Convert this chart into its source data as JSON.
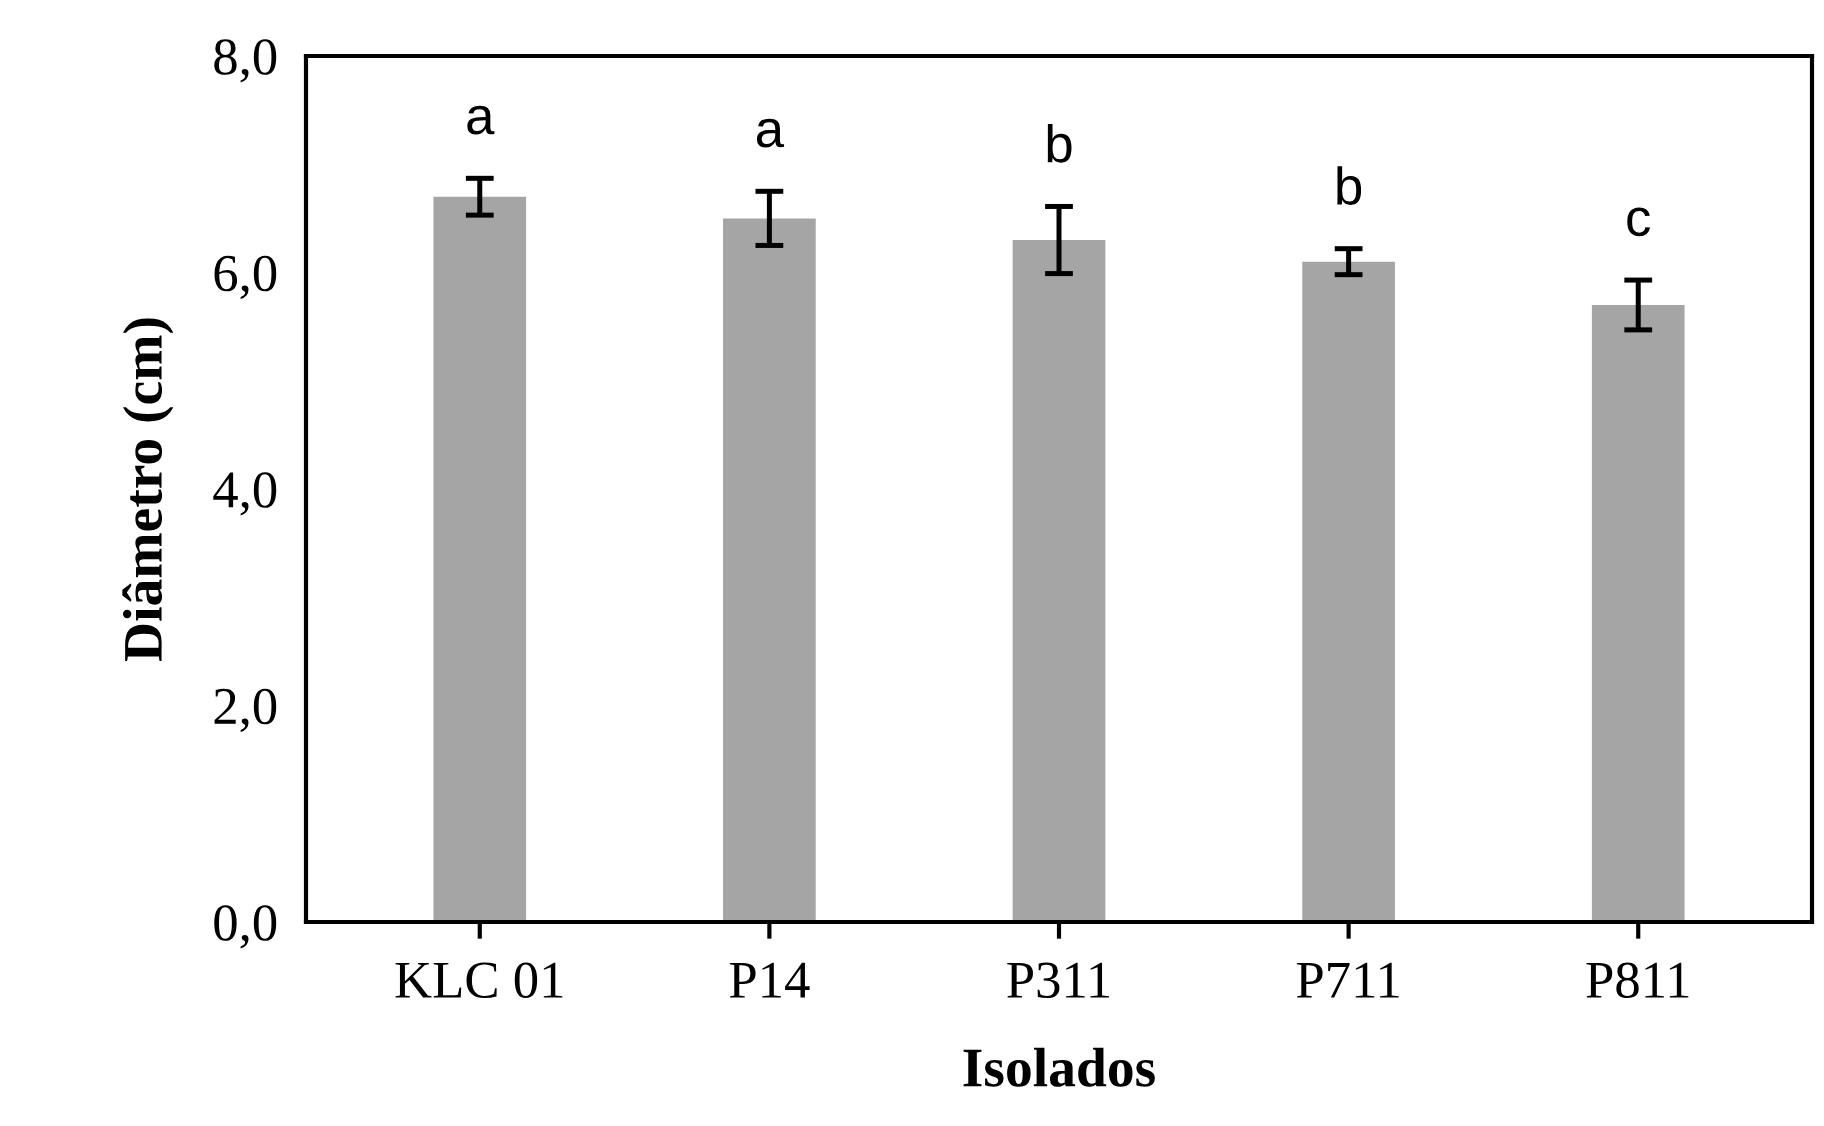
{
  "chart_data": {
    "type": "bar",
    "xlabel": "Isolados",
    "ylabel": "Diâmetro (cm)",
    "categories": [
      "KLC 01",
      "P14",
      "P311",
      "P711",
      "P811"
    ],
    "values": [
      6.7,
      6.5,
      6.3,
      6.1,
      5.7
    ],
    "errors": [
      0.17,
      0.25,
      0.31,
      0.12,
      0.23
    ],
    "color": "#a5a5a5",
    "ylim": [
      0,
      8
    ],
    "yticks": [
      {
        "value": 0,
        "label": "0,0"
      },
      {
        "value": 2,
        "label": "2,0"
      },
      {
        "value": 4,
        "label": "4,0"
      },
      {
        "value": 6,
        "label": "6,0"
      },
      {
        "value": 8,
        "label": "8,0"
      }
    ],
    "grid": false,
    "annotations": [
      "a",
      "a",
      "b",
      "b",
      "c"
    ]
  }
}
